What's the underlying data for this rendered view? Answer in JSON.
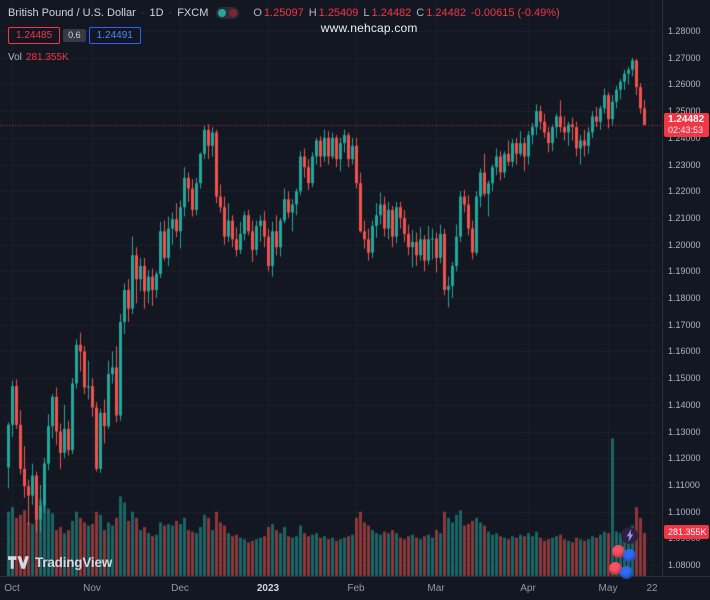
{
  "header": {
    "symbol": "British Pound / U.S. Dollar",
    "sep1": "·",
    "interval": "1D",
    "sep2": "·",
    "exchange": "FXCM",
    "ohlc": {
      "o_key": "O",
      "o": "1.25097",
      "h_key": "H",
      "h": "1.25409",
      "l_key": "L",
      "l": "1.24482",
      "c_key": "C",
      "c": "1.24482",
      "change": "-0.00615 (-0.49%)"
    },
    "sell": "1.24485",
    "spread": "0.6",
    "buy": "1.24491",
    "vol_key": "Vol",
    "vol_value": "281.355K"
  },
  "watermark": "www.nehcap.com",
  "price_label": {
    "value": "1.24482",
    "countdown": "02:43:53"
  },
  "branding": {
    "name": "TradingView"
  },
  "colors": {
    "bg": "#131722",
    "up": "#26a69a",
    "down": "#ef5350",
    "label_bg": "#f23645",
    "buy_blue": "#2962ff",
    "axis_text": "#b2b5be"
  },
  "chart_data": {
    "type": "candlestick",
    "symbol": "British Pound / U.S. Dollar",
    "pair": "GBP/USD",
    "interval": "1D",
    "exchange": "FXCM",
    "y_min": 1.08,
    "y_max": 1.28,
    "last_price": 1.24482,
    "last_volume_k": 281.355,
    "price_ticks": [
      "1.28000",
      "1.27000",
      "1.26000",
      "1.25000",
      "1.24000",
      "1.23000",
      "1.22000",
      "1.21000",
      "1.20000",
      "1.19000",
      "1.18000",
      "1.17000",
      "1.16000",
      "1.15000",
      "1.14000",
      "1.13000",
      "1.12000",
      "1.11000",
      "1.10000",
      "1.09000",
      "1.08000"
    ],
    "time_ticks": [
      {
        "label": "Oct",
        "index": 1
      },
      {
        "label": "Nov",
        "index": 21
      },
      {
        "label": "Dec",
        "index": 43
      },
      {
        "label": "2023",
        "index": 65,
        "major": true
      },
      {
        "label": "Feb",
        "index": 87
      },
      {
        "label": "Mar",
        "index": 107
      },
      {
        "label": "Apr",
        "index": 130
      },
      {
        "label": "May",
        "index": 150
      },
      {
        "label": "22",
        "index": 161
      }
    ],
    "columns": [
      "open",
      "high",
      "low",
      "close",
      "volume_k"
    ],
    "candles": [
      [
        1.1166,
        1.1334,
        1.1087,
        1.1325,
        420
      ],
      [
        1.1325,
        1.149,
        1.128,
        1.147,
        450
      ],
      [
        1.147,
        1.1495,
        1.131,
        1.1325,
        380
      ],
      [
        1.1325,
        1.138,
        1.114,
        1.116,
        400
      ],
      [
        1.116,
        1.1245,
        1.1052,
        1.1095,
        430
      ],
      [
        1.1095,
        1.112,
        1.095,
        1.106,
        350
      ],
      [
        1.106,
        1.118,
        1.1025,
        1.1135,
        340
      ],
      [
        1.1135,
        1.115,
        1.0923,
        1.097,
        520
      ],
      [
        1.097,
        1.11,
        1.0922,
        1.1023,
        500
      ],
      [
        1.1023,
        1.12,
        1.0995,
        1.118,
        460
      ],
      [
        1.118,
        1.1365,
        1.1155,
        1.132,
        440
      ],
      [
        1.132,
        1.144,
        1.1275,
        1.143,
        410
      ],
      [
        1.143,
        1.1465,
        1.125,
        1.13,
        300
      ],
      [
        1.13,
        1.133,
        1.116,
        1.122,
        320
      ],
      [
        1.122,
        1.14,
        1.12,
        1.131,
        280
      ],
      [
        1.131,
        1.134,
        1.121,
        1.123,
        300
      ],
      [
        1.123,
        1.15,
        1.1215,
        1.148,
        360
      ],
      [
        1.148,
        1.1645,
        1.146,
        1.1625,
        420
      ],
      [
        1.1625,
        1.167,
        1.1525,
        1.16,
        380
      ],
      [
        1.16,
        1.162,
        1.144,
        1.1465,
        350
      ],
      [
        1.1465,
        1.1565,
        1.142,
        1.147,
        330
      ],
      [
        1.147,
        1.15,
        1.1355,
        1.139,
        340
      ],
      [
        1.139,
        1.141,
        1.115,
        1.116,
        420
      ],
      [
        1.116,
        1.1385,
        1.1145,
        1.137,
        400
      ],
      [
        1.137,
        1.142,
        1.1255,
        1.132,
        300
      ],
      [
        1.132,
        1.1565,
        1.131,
        1.1515,
        350
      ],
      [
        1.1515,
        1.16,
        1.148,
        1.154,
        330
      ],
      [
        1.154,
        1.162,
        1.1335,
        1.136,
        380
      ],
      [
        1.136,
        1.174,
        1.134,
        1.171,
        520
      ],
      [
        1.171,
        1.1855,
        1.1665,
        1.183,
        480
      ],
      [
        1.183,
        1.187,
        1.171,
        1.176,
        360
      ],
      [
        1.176,
        1.203,
        1.174,
        1.196,
        420
      ],
      [
        1.196,
        1.199,
        1.178,
        1.187,
        380
      ],
      [
        1.187,
        1.195,
        1.1825,
        1.192,
        300
      ],
      [
        1.192,
        1.195,
        1.176,
        1.1825,
        320
      ],
      [
        1.1825,
        1.1905,
        1.178,
        1.188,
        280
      ],
      [
        1.188,
        1.191,
        1.177,
        1.183,
        260
      ],
      [
        1.183,
        1.19,
        1.18,
        1.189,
        270
      ],
      [
        1.189,
        1.2085,
        1.1875,
        1.205,
        350
      ],
      [
        1.205,
        1.209,
        1.194,
        1.195,
        330
      ],
      [
        1.195,
        1.2105,
        1.192,
        1.206,
        340
      ],
      [
        1.206,
        1.212,
        1.2,
        1.2095,
        330
      ],
      [
        1.2095,
        1.2155,
        1.2028,
        1.205,
        360
      ],
      [
        1.205,
        1.2165,
        1.1985,
        1.214,
        340
      ],
      [
        1.214,
        1.229,
        1.2105,
        1.225,
        380
      ],
      [
        1.225,
        1.227,
        1.216,
        1.221,
        300
      ],
      [
        1.221,
        1.2245,
        1.2105,
        1.213,
        290
      ],
      [
        1.213,
        1.225,
        1.211,
        1.223,
        280
      ],
      [
        1.223,
        1.2345,
        1.221,
        1.234,
        320
      ],
      [
        1.234,
        1.2445,
        1.232,
        1.243,
        400
      ],
      [
        1.243,
        1.245,
        1.232,
        1.237,
        380
      ],
      [
        1.237,
        1.244,
        1.233,
        1.242,
        300
      ],
      [
        1.242,
        1.243,
        1.2155,
        1.218,
        420
      ],
      [
        1.218,
        1.2225,
        1.212,
        1.214,
        350
      ],
      [
        1.214,
        1.218,
        1.2,
        1.203,
        330
      ],
      [
        1.203,
        1.2155,
        1.201,
        1.209,
        280
      ],
      [
        1.209,
        1.211,
        1.199,
        1.202,
        260
      ],
      [
        1.202,
        1.2065,
        1.1955,
        1.198,
        270
      ],
      [
        1.198,
        1.2085,
        1.1965,
        1.204,
        250
      ],
      [
        1.204,
        1.2125,
        1.2015,
        1.211,
        240
      ],
      [
        1.211,
        1.213,
        1.2035,
        1.205,
        220
      ],
      [
        1.205,
        1.209,
        1.1935,
        1.198,
        230
      ],
      [
        1.198,
        1.209,
        1.196,
        1.207,
        240
      ],
      [
        1.207,
        1.211,
        1.201,
        1.209,
        250
      ],
      [
        1.209,
        1.2125,
        1.199,
        1.203,
        260
      ],
      [
        1.203,
        1.206,
        1.19,
        1.192,
        320
      ],
      [
        1.192,
        1.2085,
        1.188,
        1.205,
        340
      ],
      [
        1.205,
        1.211,
        1.196,
        1.199,
        300
      ],
      [
        1.199,
        1.21,
        1.1955,
        1.209,
        280
      ],
      [
        1.209,
        1.221,
        1.208,
        1.217,
        320
      ],
      [
        1.217,
        1.22,
        1.21,
        1.212,
        260
      ],
      [
        1.212,
        1.217,
        1.205,
        1.215,
        250
      ],
      [
        1.215,
        1.221,
        1.211,
        1.22,
        260
      ],
      [
        1.22,
        1.235,
        1.2185,
        1.233,
        330
      ],
      [
        1.233,
        1.236,
        1.225,
        1.229,
        280
      ],
      [
        1.229,
        1.232,
        1.2205,
        1.223,
        260
      ],
      [
        1.223,
        1.2345,
        1.2215,
        1.233,
        270
      ],
      [
        1.233,
        1.24,
        1.23,
        1.239,
        280
      ],
      [
        1.239,
        1.2405,
        1.229,
        1.233,
        250
      ],
      [
        1.233,
        1.243,
        1.231,
        1.24,
        260
      ],
      [
        1.24,
        1.2425,
        1.23,
        1.233,
        240
      ],
      [
        1.233,
        1.242,
        1.232,
        1.24,
        250
      ],
      [
        1.24,
        1.241,
        1.229,
        1.232,
        230
      ],
      [
        1.232,
        1.24,
        1.2275,
        1.238,
        240
      ],
      [
        1.238,
        1.243,
        1.2345,
        1.241,
        250
      ],
      [
        1.241,
        1.242,
        1.229,
        1.232,
        260
      ],
      [
        1.232,
        1.24,
        1.23,
        1.237,
        270
      ],
      [
        1.237,
        1.24,
        1.221,
        1.223,
        380
      ],
      [
        1.223,
        1.227,
        1.2045,
        1.205,
        420
      ],
      [
        1.205,
        1.209,
        1.1985,
        1.202,
        350
      ],
      [
        1.202,
        1.206,
        1.194,
        1.197,
        330
      ],
      [
        1.197,
        1.209,
        1.195,
        1.207,
        300
      ],
      [
        1.207,
        1.2155,
        1.2025,
        1.211,
        280
      ],
      [
        1.211,
        1.2195,
        1.2075,
        1.215,
        270
      ],
      [
        1.215,
        1.218,
        1.203,
        1.206,
        290
      ],
      [
        1.206,
        1.216,
        1.202,
        1.213,
        280
      ],
      [
        1.213,
        1.2145,
        1.199,
        1.203,
        300
      ],
      [
        1.203,
        1.216,
        1.2005,
        1.214,
        280
      ],
      [
        1.214,
        1.216,
        1.206,
        1.21,
        250
      ],
      [
        1.21,
        1.213,
        1.201,
        1.204,
        240
      ],
      [
        1.204,
        1.2075,
        1.196,
        1.199,
        260
      ],
      [
        1.199,
        1.2055,
        1.1915,
        1.201,
        270
      ],
      [
        1.201,
        1.2045,
        1.192,
        1.196,
        250
      ],
      [
        1.196,
        1.2065,
        1.194,
        1.202,
        240
      ],
      [
        1.202,
        1.2035,
        1.19,
        1.194,
        260
      ],
      [
        1.194,
        1.207,
        1.1925,
        1.202,
        270
      ],
      [
        1.202,
        1.206,
        1.1945,
        1.2023,
        250
      ],
      [
        1.2023,
        1.2045,
        1.1895,
        1.195,
        300
      ],
      [
        1.195,
        1.2075,
        1.193,
        1.204,
        280
      ],
      [
        1.204,
        1.206,
        1.181,
        1.183,
        420
      ],
      [
        1.183,
        1.188,
        1.1765,
        1.1845,
        380
      ],
      [
        1.1845,
        1.1935,
        1.18,
        1.192,
        350
      ],
      [
        1.192,
        1.2075,
        1.19,
        1.203,
        400
      ],
      [
        1.203,
        1.22,
        1.201,
        1.218,
        430
      ],
      [
        1.218,
        1.2205,
        1.212,
        1.215,
        330
      ],
      [
        1.215,
        1.2185,
        1.2035,
        1.206,
        340
      ],
      [
        1.206,
        1.209,
        1.1945,
        1.197,
        360
      ],
      [
        1.197,
        1.22,
        1.196,
        1.218,
        380
      ],
      [
        1.218,
        1.2285,
        1.214,
        1.227,
        350
      ],
      [
        1.227,
        1.234,
        1.218,
        1.219,
        330
      ],
      [
        1.219,
        1.224,
        1.2105,
        1.223,
        290
      ],
      [
        1.223,
        1.23,
        1.22,
        1.229,
        270
      ],
      [
        1.229,
        1.236,
        1.226,
        1.233,
        280
      ],
      [
        1.233,
        1.235,
        1.224,
        1.227,
        260
      ],
      [
        1.227,
        1.235,
        1.225,
        1.234,
        250
      ],
      [
        1.234,
        1.239,
        1.2295,
        1.231,
        240
      ],
      [
        1.231,
        1.2395,
        1.229,
        1.238,
        260
      ],
      [
        1.238,
        1.24,
        1.23,
        1.234,
        250
      ],
      [
        1.234,
        1.2425,
        1.233,
        1.238,
        270
      ],
      [
        1.238,
        1.24,
        1.2275,
        1.233,
        260
      ],
      [
        1.233,
        1.2425,
        1.23,
        1.241,
        280
      ],
      [
        1.241,
        1.2455,
        1.2375,
        1.244,
        260
      ],
      [
        1.244,
        1.2525,
        1.241,
        1.25,
        290
      ],
      [
        1.25,
        1.252,
        1.243,
        1.246,
        250
      ],
      [
        1.246,
        1.249,
        1.24,
        1.242,
        230
      ],
      [
        1.242,
        1.244,
        1.2345,
        1.238,
        240
      ],
      [
        1.238,
        1.245,
        1.235,
        1.244,
        250
      ],
      [
        1.244,
        1.249,
        1.24,
        1.248,
        260
      ],
      [
        1.248,
        1.254,
        1.242,
        1.244,
        270
      ],
      [
        1.244,
        1.248,
        1.239,
        1.242,
        240
      ],
      [
        1.242,
        1.246,
        1.237,
        1.245,
        230
      ],
      [
        1.245,
        1.2475,
        1.239,
        1.244,
        220
      ],
      [
        1.244,
        1.246,
        1.233,
        1.236,
        250
      ],
      [
        1.236,
        1.241,
        1.23,
        1.239,
        240
      ],
      [
        1.239,
        1.243,
        1.233,
        1.237,
        230
      ],
      [
        1.237,
        1.244,
        1.234,
        1.242,
        240
      ],
      [
        1.242,
        1.25,
        1.24,
        1.248,
        260
      ],
      [
        1.248,
        1.2515,
        1.244,
        1.246,
        250
      ],
      [
        1.246,
        1.252,
        1.243,
        1.251,
        270
      ],
      [
        1.251,
        1.2585,
        1.249,
        1.256,
        290
      ],
      [
        1.256,
        1.257,
        1.2435,
        1.247,
        280
      ],
      [
        1.247,
        1.256,
        1.2445,
        1.2535,
        900
      ],
      [
        1.2535,
        1.2595,
        1.251,
        1.258,
        290
      ],
      [
        1.258,
        1.262,
        1.2545,
        1.261,
        280
      ],
      [
        1.261,
        1.2655,
        1.258,
        1.264,
        300
      ],
      [
        1.264,
        1.2665,
        1.26,
        1.2655,
        310
      ],
      [
        1.2655,
        1.27,
        1.263,
        1.269,
        330
      ],
      [
        1.269,
        1.2695,
        1.256,
        1.259,
        450
      ],
      [
        1.259,
        1.2605,
        1.249,
        1.251,
        380
      ],
      [
        1.25097,
        1.25409,
        1.24482,
        1.24482,
        281.355
      ]
    ]
  }
}
